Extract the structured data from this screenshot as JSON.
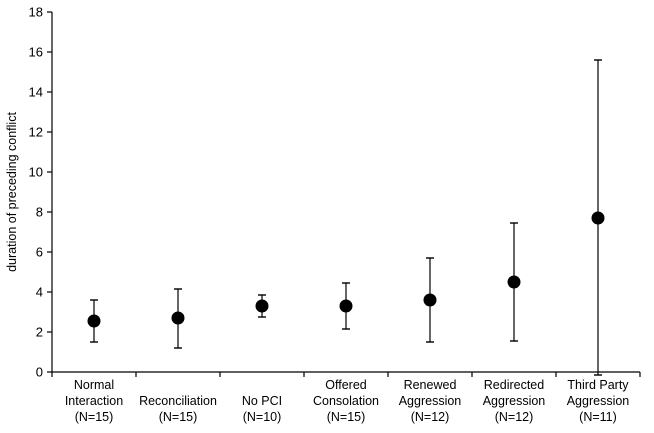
{
  "chart_data": {
    "type": "scatter",
    "ylabel": "duration of preceding conflict",
    "xlabel": "",
    "ylim": [
      0,
      18
    ],
    "yticks": [
      0,
      2,
      4,
      6,
      8,
      10,
      12,
      14,
      16,
      18
    ],
    "grid": false,
    "legend": "none",
    "colors": {
      "marker": "#000000",
      "axis": "#000000"
    },
    "categories": [
      {
        "lines": [
          "Normal",
          "Interaction",
          "(N=15)"
        ],
        "mean": 2.55,
        "lower": 1.5,
        "upper": 3.6
      },
      {
        "lines": [
          "Reconciliation",
          "(N=15)"
        ],
        "mean": 2.7,
        "lower": 1.2,
        "upper": 4.15
      },
      {
        "lines": [
          "No PCI",
          "(N=10)"
        ],
        "mean": 3.3,
        "lower": 2.75,
        "upper": 3.85
      },
      {
        "lines": [
          "Offered",
          "Consolation",
          "(N=15)"
        ],
        "mean": 3.3,
        "lower": 2.15,
        "upper": 4.45
      },
      {
        "lines": [
          "Renewed",
          "Aggression",
          "(N=12)"
        ],
        "mean": 3.6,
        "lower": 1.5,
        "upper": 5.7
      },
      {
        "lines": [
          "Redirected",
          "Aggression",
          "(N=12)"
        ],
        "mean": 4.5,
        "lower": 1.55,
        "upper": 7.45
      },
      {
        "lines": [
          "Third Party",
          "Aggression",
          "(N=11)"
        ],
        "mean": 7.7,
        "lower": -0.15,
        "upper": 15.6
      }
    ]
  }
}
